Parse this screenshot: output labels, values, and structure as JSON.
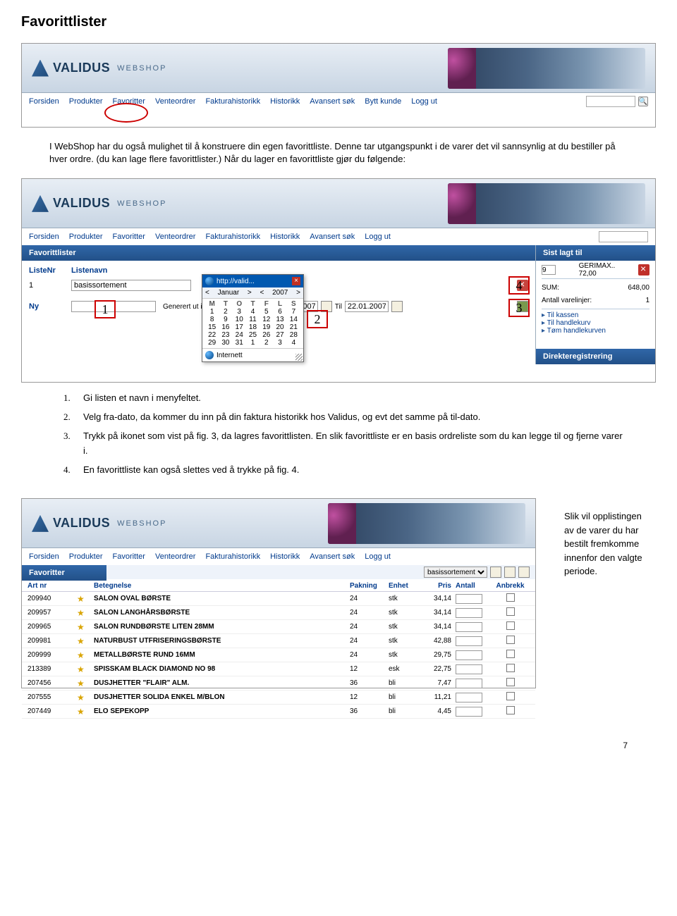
{
  "doc": {
    "title": "Favorittlister",
    "p1": "I WebShop har du også mulighet til å konstruere din egen favorittliste. Denne tar utgangspunkt i de varer det vil sannsynlig at du bestiller på hver ordre. (du kan lage flere favorittlister.) Når du lager en favorittliste gjør du følgende:",
    "steps": [
      {
        "n": "1.",
        "t": "Gi listen et navn i menyfeltet."
      },
      {
        "n": "2.",
        "t": "Velg fra-dato, da kommer du inn på din faktura historikk hos Validus, og evt det samme på til-dato."
      },
      {
        "n": "3.",
        "t": "Trykk på ikonet som vist på fig. 3, da lagres favorittlisten. En slik favorittliste er en basis ordreliste som du kan legge til og fjerne varer i."
      },
      {
        "n": "4.",
        "t": "En favorittliste kan også slettes ved å trykke på fig. 4."
      }
    ],
    "side_caption": "Slik vil opplistingen av de varer du har bestilt fremkomme innenfor den valgte periode.",
    "page_num": "7"
  },
  "brand": {
    "name": "VALIDUS",
    "sub": "WEBSHOP"
  },
  "menu": {
    "items": [
      "Forsiden",
      "Produkter",
      "Favoritter",
      "Venteordrer",
      "Fakturahistorikk",
      "Historikk",
      "Avansert søk",
      "Bytt kunde",
      "Logg ut"
    ],
    "items2": [
      "Forsiden",
      "Produkter",
      "Favoritter",
      "Venteordrer",
      "Fakturahistorikk",
      "Historikk",
      "Avansert søk",
      "Logg ut"
    ]
  },
  "favlist": {
    "title": "Favorittlister",
    "cols": {
      "nr": "ListeNr",
      "navn": "Listenavn"
    },
    "row_nr": "1",
    "row_navn": "basissortement",
    "ny": "Ny",
    "gen_label": "Generert ut ifra fakturahistorikk fra",
    "til": "Til",
    "date1": "22.01.2007",
    "date2": "22.01.2007",
    "boxes": {
      "1": "1",
      "2": "2",
      "3": "3",
      "4": "4"
    }
  },
  "calendar": {
    "addr": "http://valid...",
    "month": "Januar",
    "year": "2007",
    "days": [
      "M",
      "T",
      "O",
      "T",
      "F",
      "L",
      "S"
    ],
    "cells": [
      "1",
      "2",
      "3",
      "4",
      "5",
      "6",
      "7",
      "8",
      "9",
      "10",
      "11",
      "12",
      "13",
      "14",
      "15",
      "16",
      "17",
      "18",
      "19",
      "20",
      "21",
      "22",
      "23",
      "24",
      "25",
      "26",
      "27",
      "28",
      "29",
      "30",
      "31",
      "1",
      "2",
      "3",
      "4"
    ],
    "foot": "Internett"
  },
  "sidebar": {
    "title": "Sist lagt til",
    "item_qty": "9",
    "item_name": "GERIMAX..",
    "item_price": "72,00",
    "sum_label": "SUM:",
    "sum_val": "648,00",
    "lines_label": "Antall varelinjer:",
    "lines_val": "1",
    "links": [
      "Til kassen",
      "Til handlekurv",
      "Tøm handlekurven"
    ],
    "direct": "Direkteregistrering"
  },
  "favtab": {
    "title": "Favoritter",
    "select": "basissortement",
    "cols": {
      "art": "Art nr",
      "bet": "Betegnelse",
      "pak": "Pakning",
      "enh": "Enhet",
      "pris": "Pris",
      "ant": "Antall",
      "anb": "Anbrekk"
    },
    "rows": [
      {
        "art": "209940",
        "bet": "SALON OVAL BØRSTE",
        "pak": "24",
        "enh": "stk",
        "pris": "34,14"
      },
      {
        "art": "209957",
        "bet": "SALON LANGHÅRSBØRSTE",
        "pak": "24",
        "enh": "stk",
        "pris": "34,14"
      },
      {
        "art": "209965",
        "bet": "SALON RUNDBØRSTE LITEN 28MM",
        "pak": "24",
        "enh": "stk",
        "pris": "34,14"
      },
      {
        "art": "209981",
        "bet": "NATURBUST UTFRISERINGSBØRSTE",
        "pak": "24",
        "enh": "stk",
        "pris": "42,88"
      },
      {
        "art": "209999",
        "bet": "METALLBØRSTE RUND 16MM",
        "pak": "24",
        "enh": "stk",
        "pris": "29,75"
      },
      {
        "art": "213389",
        "bet": "SPISSKAM BLACK DIAMOND NO 98",
        "pak": "12",
        "enh": "esk",
        "pris": "22,75"
      },
      {
        "art": "207456",
        "bet": "DUSJHETTER \"FLAIR\" ALM.",
        "pak": "36",
        "enh": "bli",
        "pris": "7,47"
      },
      {
        "art": "207555",
        "bet": "DUSJHETTER SOLIDA ENKEL M/BLON",
        "pak": "12",
        "enh": "bli",
        "pris": "11,21"
      },
      {
        "art": "207449",
        "bet": "ELO SEPEKOPP",
        "pak": "36",
        "enh": "bli",
        "pris": "4,45"
      }
    ]
  }
}
